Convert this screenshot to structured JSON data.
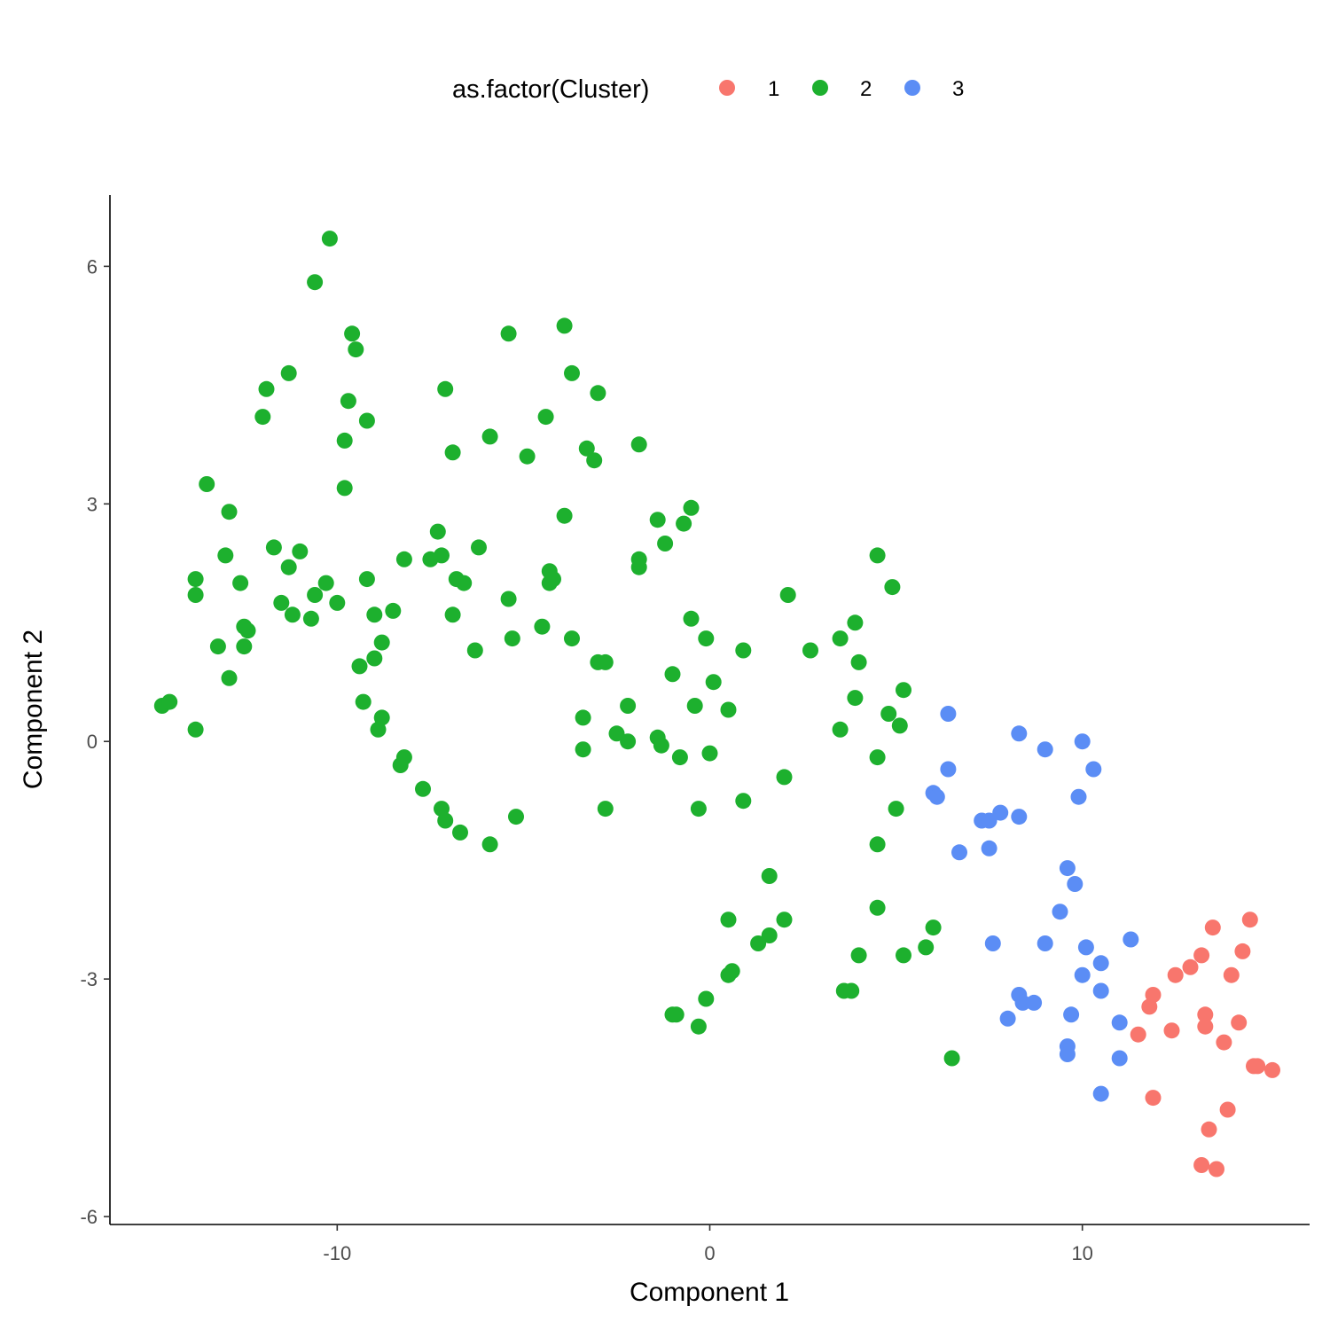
{
  "chart_data": {
    "type": "scatter",
    "title": "",
    "xlabel": "Component 1",
    "ylabel": "Component 2",
    "xlim": [
      -16.1,
      16.1
    ],
    "ylim": [
      -6.1,
      6.9
    ],
    "xticks": [
      -10,
      0,
      10
    ],
    "xtick_labels": [
      "-10",
      "0",
      "10"
    ],
    "yticks": [
      -6,
      -3,
      0,
      3,
      6
    ],
    "ytick_labels": [
      "-6",
      "-3",
      "0",
      "3",
      "6"
    ],
    "grid": false,
    "legend": {
      "title": "as.factor(Cluster)",
      "position": "top",
      "entries": [
        "1",
        "2",
        "3"
      ]
    },
    "colors": {
      "1": "#F8766D",
      "2": "#1DB02E",
      "3": "#5B8DF5"
    },
    "series": [
      {
        "name": "1",
        "points": [
          [
            11.5,
            -3.7
          ],
          [
            11.9,
            -4.5
          ],
          [
            11.8,
            -3.35
          ],
          [
            11.9,
            -3.2
          ],
          [
            12.4,
            -3.65
          ],
          [
            12.5,
            -2.95
          ],
          [
            12.9,
            -2.85
          ],
          [
            13.2,
            -2.7
          ],
          [
            13.3,
            -3.45
          ],
          [
            13.3,
            -3.6
          ],
          [
            13.5,
            -2.35
          ],
          [
            13.4,
            -4.9
          ],
          [
            13.2,
            -5.35
          ],
          [
            13.8,
            -3.8
          ],
          [
            13.9,
            -4.65
          ],
          [
            13.6,
            -5.4
          ],
          [
            14.0,
            -2.95
          ],
          [
            14.2,
            -3.55
          ],
          [
            14.3,
            -2.65
          ],
          [
            14.5,
            -2.25
          ],
          [
            14.6,
            -4.1
          ],
          [
            14.7,
            -4.1
          ],
          [
            15.1,
            -4.15
          ]
        ]
      },
      {
        "name": "2",
        "points": [
          [
            -14.7,
            0.45
          ],
          [
            -14.5,
            0.5
          ],
          [
            -13.8,
            0.15
          ],
          [
            -13.8,
            2.05
          ],
          [
            -13.8,
            1.85
          ],
          [
            -13.5,
            3.25
          ],
          [
            -13.2,
            1.2
          ],
          [
            -13.0,
            2.35
          ],
          [
            -12.9,
            2.9
          ],
          [
            -12.9,
            0.8
          ],
          [
            -12.6,
            2.0
          ],
          [
            -12.5,
            1.45
          ],
          [
            -12.5,
            1.2
          ],
          [
            -12.4,
            1.4
          ],
          [
            -12.0,
            4.1
          ],
          [
            -11.9,
            4.45
          ],
          [
            -11.7,
            2.45
          ],
          [
            -11.5,
            1.75
          ],
          [
            -11.3,
            4.65
          ],
          [
            -11.3,
            2.2
          ],
          [
            -11.2,
            1.6
          ],
          [
            -11.0,
            2.4
          ],
          [
            -10.7,
            1.55
          ],
          [
            -10.6,
            1.85
          ],
          [
            -10.6,
            5.8
          ],
          [
            -10.3,
            2.0
          ],
          [
            -10.2,
            6.35
          ],
          [
            -10.0,
            1.75
          ],
          [
            -9.8,
            3.2
          ],
          [
            -9.8,
            3.8
          ],
          [
            -9.7,
            4.3
          ],
          [
            -9.6,
            5.15
          ],
          [
            -9.5,
            4.95
          ],
          [
            -9.4,
            0.95
          ],
          [
            -9.3,
            0.5
          ],
          [
            -9.2,
            2.05
          ],
          [
            -9.2,
            4.05
          ],
          [
            -9.0,
            1.6
          ],
          [
            -9.0,
            1.05
          ],
          [
            -8.9,
            0.15
          ],
          [
            -8.8,
            1.25
          ],
          [
            -8.8,
            0.3
          ],
          [
            -8.5,
            1.65
          ],
          [
            -8.3,
            -0.3
          ],
          [
            -8.2,
            -0.2
          ],
          [
            -8.2,
            2.3
          ],
          [
            -7.7,
            -0.6
          ],
          [
            -7.5,
            2.3
          ],
          [
            -7.3,
            2.65
          ],
          [
            -7.2,
            2.35
          ],
          [
            -7.2,
            -0.85
          ],
          [
            -7.1,
            4.45
          ],
          [
            -7.1,
            -1.0
          ],
          [
            -6.9,
            1.6
          ],
          [
            -6.9,
            3.65
          ],
          [
            -6.8,
            2.05
          ],
          [
            -6.7,
            -1.15
          ],
          [
            -6.6,
            2.0
          ],
          [
            -6.3,
            1.15
          ],
          [
            -6.2,
            2.45
          ],
          [
            -5.9,
            3.85
          ],
          [
            -5.9,
            -1.3
          ],
          [
            -5.4,
            1.8
          ],
          [
            -5.4,
            5.15
          ],
          [
            -5.3,
            1.3
          ],
          [
            -5.2,
            -0.95
          ],
          [
            -4.9,
            3.6
          ],
          [
            -4.5,
            1.45
          ],
          [
            -4.4,
            4.1
          ],
          [
            -4.3,
            2.15
          ],
          [
            -4.3,
            2.0
          ],
          [
            -4.2,
            2.05
          ],
          [
            -3.9,
            2.85
          ],
          [
            -3.9,
            5.25
          ],
          [
            -3.7,
            4.65
          ],
          [
            -3.7,
            1.3
          ],
          [
            -3.4,
            0.3
          ],
          [
            -3.4,
            -0.1
          ],
          [
            -3.3,
            3.7
          ],
          [
            -3.1,
            3.55
          ],
          [
            -3.0,
            4.4
          ],
          [
            -3.0,
            1.0
          ],
          [
            -2.8,
            1.0
          ],
          [
            -2.8,
            -0.85
          ],
          [
            -2.5,
            0.1
          ],
          [
            -2.2,
            0.0
          ],
          [
            -2.2,
            0.45
          ],
          [
            -1.9,
            2.2
          ],
          [
            -1.9,
            2.3
          ],
          [
            -1.9,
            3.75
          ],
          [
            -1.4,
            2.8
          ],
          [
            -1.4,
            0.05
          ],
          [
            -1.3,
            -0.05
          ],
          [
            -1.2,
            2.5
          ],
          [
            -1.0,
            0.85
          ],
          [
            -0.8,
            -0.2
          ],
          [
            -0.7,
            2.75
          ],
          [
            -0.5,
            2.95
          ],
          [
            -0.5,
            1.55
          ],
          [
            -0.4,
            0.45
          ],
          [
            -0.3,
            -0.85
          ],
          [
            -0.1,
            1.3
          ],
          [
            0.0,
            -0.15
          ],
          [
            0.1,
            0.75
          ],
          [
            0.5,
            0.4
          ],
          [
            0.5,
            -2.25
          ],
          [
            0.5,
            -2.95
          ],
          [
            0.6,
            -2.9
          ],
          [
            0.9,
            1.15
          ],
          [
            0.9,
            -0.75
          ],
          [
            -1.0,
            -3.45
          ],
          [
            -0.9,
            -3.45
          ],
          [
            -0.3,
            -3.6
          ],
          [
            -0.1,
            -3.25
          ],
          [
            1.3,
            -2.55
          ],
          [
            1.6,
            -1.7
          ],
          [
            1.6,
            -2.45
          ],
          [
            2.0,
            -0.45
          ],
          [
            2.1,
            1.85
          ],
          [
            2.0,
            -2.25
          ],
          [
            2.7,
            1.15
          ],
          [
            3.5,
            1.3
          ],
          [
            3.5,
            0.15
          ],
          [
            3.6,
            -3.15
          ],
          [
            3.8,
            -3.15
          ],
          [
            3.9,
            1.5
          ],
          [
            3.9,
            0.55
          ],
          [
            4.0,
            1.0
          ],
          [
            4.0,
            -2.7
          ],
          [
            4.5,
            2.35
          ],
          [
            4.5,
            -0.2
          ],
          [
            4.5,
            -1.3
          ],
          [
            4.5,
            -2.1
          ],
          [
            4.8,
            0.35
          ],
          [
            4.9,
            1.95
          ],
          [
            5.0,
            -0.85
          ],
          [
            5.1,
            0.2
          ],
          [
            5.2,
            -2.7
          ],
          [
            5.2,
            0.65
          ],
          [
            5.8,
            -2.6
          ],
          [
            6.0,
            -2.35
          ],
          [
            6.5,
            -4.0
          ]
        ]
      },
      {
        "name": "3",
        "points": [
          [
            6.0,
            -0.65
          ],
          [
            6.1,
            -0.7
          ],
          [
            6.4,
            0.35
          ],
          [
            6.4,
            -0.35
          ],
          [
            6.7,
            -1.4
          ],
          [
            7.3,
            -1.0
          ],
          [
            7.5,
            -1.0
          ],
          [
            7.5,
            -1.35
          ],
          [
            7.6,
            -2.55
          ],
          [
            7.8,
            -0.9
          ],
          [
            8.0,
            -3.5
          ],
          [
            8.3,
            0.1
          ],
          [
            8.3,
            -0.95
          ],
          [
            8.3,
            -3.2
          ],
          [
            8.4,
            -3.3
          ],
          [
            8.7,
            -3.3
          ],
          [
            9.0,
            -0.1
          ],
          [
            9.0,
            -2.55
          ],
          [
            9.4,
            -2.15
          ],
          [
            9.6,
            -1.6
          ],
          [
            9.6,
            -3.85
          ],
          [
            9.6,
            -3.95
          ],
          [
            9.7,
            -3.45
          ],
          [
            9.8,
            -1.8
          ],
          [
            9.9,
            -0.7
          ],
          [
            10.0,
            0.0
          ],
          [
            10.0,
            -2.95
          ],
          [
            10.1,
            -2.6
          ],
          [
            10.3,
            -0.35
          ],
          [
            10.5,
            -2.8
          ],
          [
            10.5,
            -3.15
          ],
          [
            10.5,
            -4.45
          ],
          [
            11.0,
            -3.55
          ],
          [
            11.0,
            -4.0
          ],
          [
            11.3,
            -2.5
          ]
        ]
      }
    ]
  }
}
